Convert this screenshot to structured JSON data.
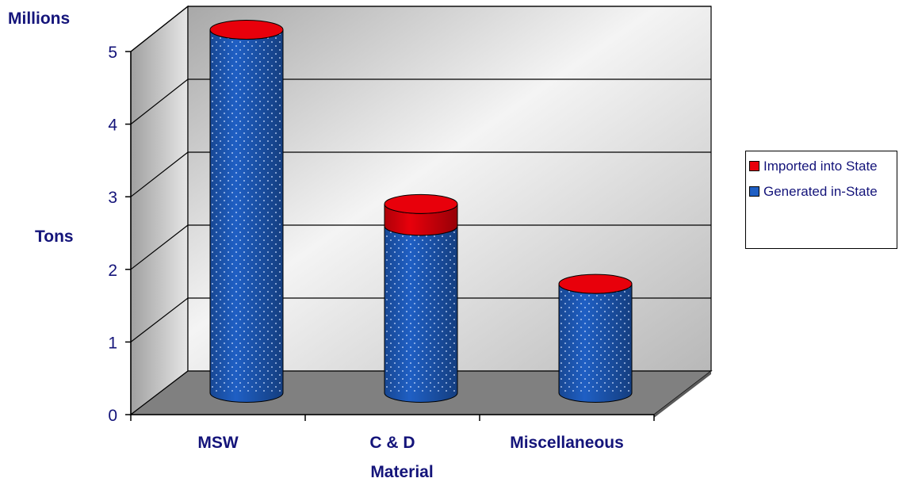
{
  "chart_data": {
    "type": "bar",
    "title": "",
    "units_label": "Millions",
    "ylabel": "Tons",
    "xlabel": "Material",
    "ylim": [
      0,
      5
    ],
    "yticks": [
      0,
      1,
      2,
      3,
      4,
      5
    ],
    "categories": [
      "MSW",
      "C & D",
      "Miscellaneous"
    ],
    "series": [
      {
        "name": "Generated in-State",
        "values": [
          5.0,
          2.3,
          1.5
        ],
        "color": "#1f5fc4"
      },
      {
        "name": "Imported into State",
        "values": [
          0.0,
          0.3,
          0.0
        ],
        "color": "#e8000b"
      }
    ],
    "legend": {
      "placement": "right",
      "items": [
        "Imported into State",
        "Generated in-State"
      ]
    },
    "grid": true,
    "style": "3d-cylinder",
    "colors": {
      "wall": "#c8c8c8",
      "floor": "#808080",
      "text": "#14147a"
    }
  }
}
